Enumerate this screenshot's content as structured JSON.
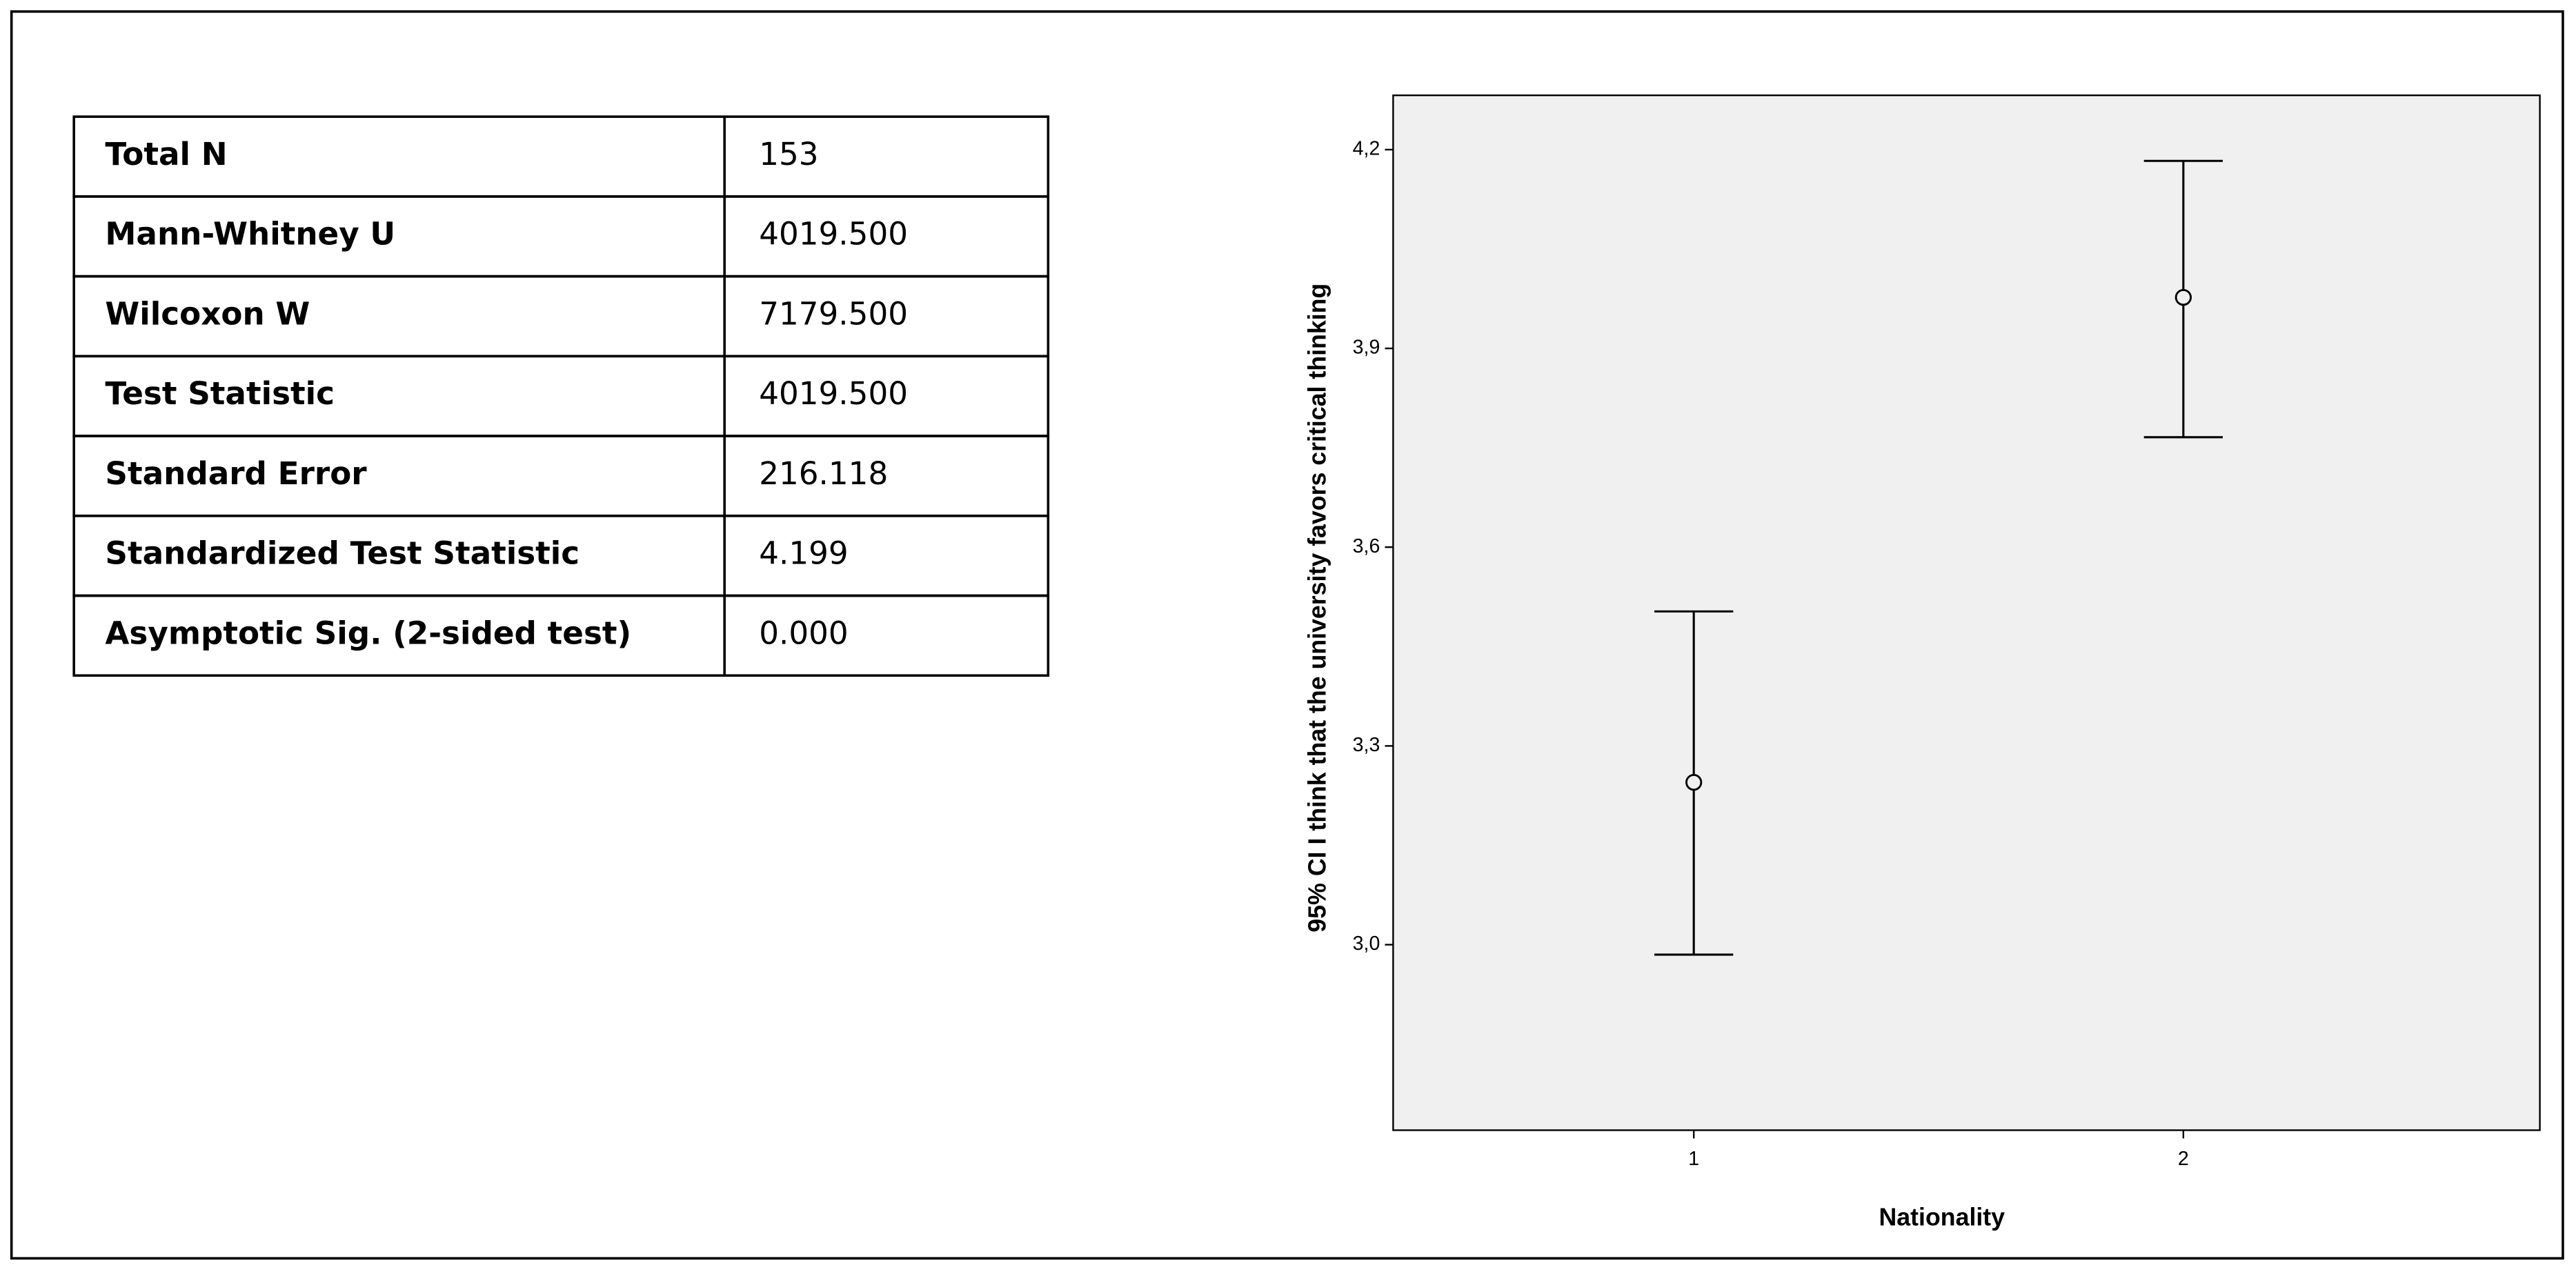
{
  "table": {
    "rows": [
      [
        "Total N",
        "153"
      ],
      [
        "Mann-Whitney U",
        "4019.500"
      ],
      [
        "Wilcoxon W",
        "7179.500"
      ],
      [
        "Test Statistic",
        "4019.500"
      ],
      [
        "Standard Error",
        "216.118"
      ],
      [
        "Standardized Test Statistic",
        "4.199"
      ],
      [
        "Asymptotic Sig. (2-sided test)",
        "0.000"
      ]
    ]
  },
  "chart_data": {
    "type": "errorbar",
    "x_label": "Nationality",
    "y_label": "95% CI I think that the university favors critical thinking",
    "categories": [
      "1",
      "2"
    ],
    "values": [
      3.245,
      3.977
    ],
    "lower": [
      2.985,
      3.766
    ],
    "upper": [
      3.503,
      4.183
    ],
    "color": "#000000",
    "background": "#f0f0f0",
    "ylim": [
      2.72,
      4.282
    ],
    "yticks": [
      {
        "value": 3.0,
        "label": "3,0"
      },
      {
        "value": 3.3,
        "label": "3,3"
      },
      {
        "value": 3.6,
        "label": "3,6"
      },
      {
        "value": 3.9,
        "label": "3,9"
      },
      {
        "value": 4.2,
        "label": "4,2"
      }
    ]
  }
}
